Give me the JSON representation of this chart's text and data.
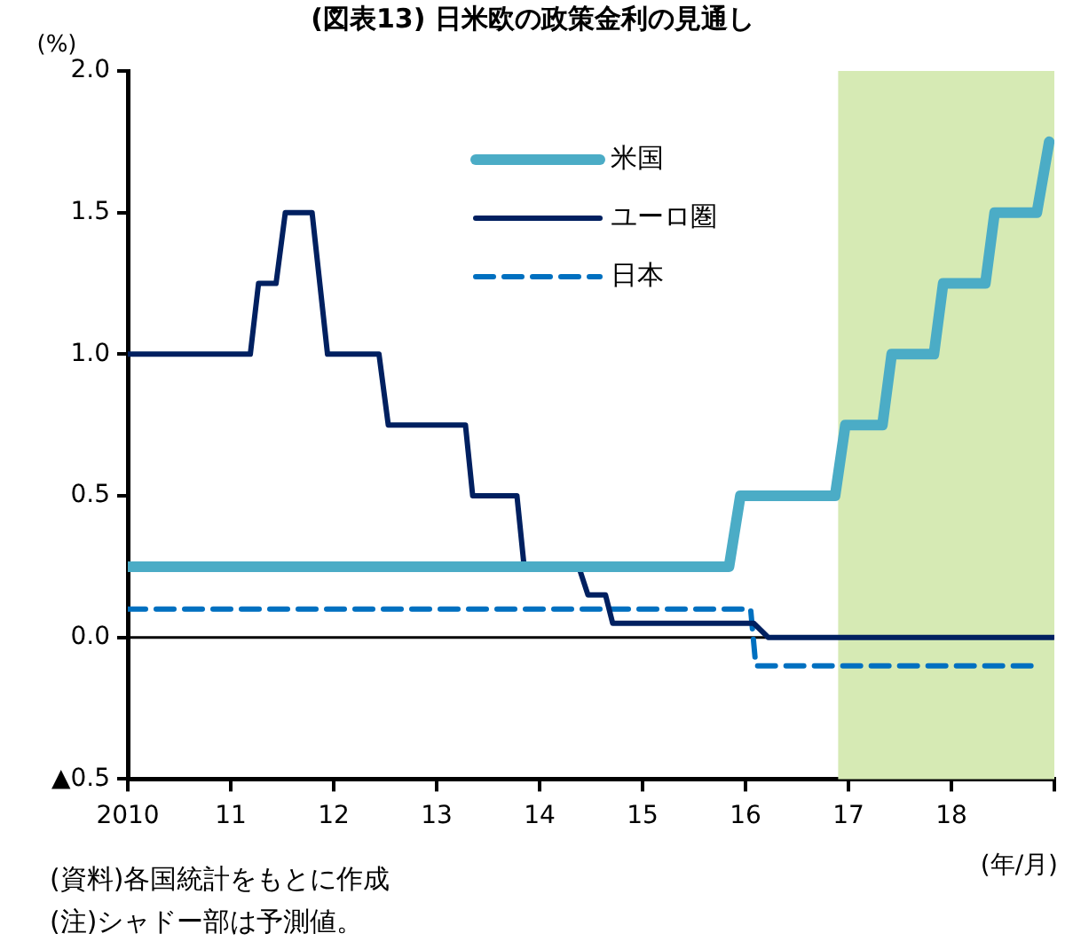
{
  "chart_data": {
    "type": "line",
    "title": "(図表13) 日米欧の政策金利の見通し",
    "ylabel": "(%)",
    "xlabel": "(年/月)",
    "xlim": [
      2010,
      2019
    ],
    "xticks": [
      2010,
      {
        "value": 2011,
        "label": "11"
      },
      {
        "value": 2012,
        "label": "12"
      },
      {
        "value": 2013,
        "label": "13"
      },
      {
        "value": 2014,
        "label": "14"
      },
      {
        "value": 2015,
        "label": "15"
      },
      {
        "value": 2016,
        "label": "16"
      },
      {
        "value": 2017,
        "label": "17"
      },
      {
        "value": 2018,
        "label": "18"
      },
      {
        "value": 2019,
        "label": null
      }
    ],
    "ylim": [
      -0.5,
      2
    ],
    "yticks": [
      {
        "value": -0.5,
        "label": "▲0.5"
      },
      {
        "value": 0,
        "label": "0.0"
      },
      {
        "value": 0.5,
        "label": "0.5"
      },
      {
        "value": 1,
        "label": "1.0"
      },
      {
        "value": 1.5,
        "label": "1.5"
      },
      {
        "value": 2,
        "label": "2.0"
      }
    ],
    "grid": false,
    "legend": "top",
    "marker": "none",
    "series": [
      {
        "name": "米国",
        "color": "#4bacc6",
        "x": [
          2010,
          2015.84,
          2015.95,
          2016.87,
          2016.97,
          2017.33,
          2017.42,
          2017.83,
          2017.92,
          2018.33,
          2018.42,
          2018.83,
          2018.95
        ],
        "values": [
          0.25,
          0.25,
          0.5,
          0.5,
          0.75,
          0.75,
          1.0,
          1.0,
          1.25,
          1.25,
          1.5,
          1.5,
          1.75
        ]
      },
      {
        "name": "ユーロ圏",
        "color": "#002060",
        "x": [
          2010,
          2011.19,
          2011.27,
          2011.44,
          2011.53,
          2011.79,
          2011.94,
          2012.44,
          2012.53,
          2013.28,
          2013.35,
          2013.78,
          2013.85,
          2014.38,
          2014.47,
          2014.64,
          2014.71,
          2016.08,
          2016.22,
          2018.99
        ],
        "values": [
          1.0,
          1.0,
          1.25,
          1.25,
          1.5,
          1.5,
          1.0,
          1.0,
          0.75,
          0.75,
          0.5,
          0.5,
          0.25,
          0.25,
          0.15,
          0.15,
          0.05,
          0.05,
          0,
          0
        ]
      },
      {
        "name": "日本",
        "color": "#0070c0",
        "line_style": "dashed",
        "x": [
          2010,
          2016.05,
          2016.1,
          2018.85
        ],
        "values": [
          0.1,
          0.1,
          -0.1,
          -0.1
        ]
      }
    ],
    "ref_lines": [
      {
        "axis": "y",
        "value": 0,
        "color": "#000000"
      }
    ],
    "bands": [
      {
        "axis": "x",
        "from": 2016.9,
        "to": 2019,
        "color": "#d6eab4"
      }
    ],
    "annotations": [
      "(資料)各国統計をもとに作成",
      "(注)シャドー部は予測値。"
    ]
  }
}
